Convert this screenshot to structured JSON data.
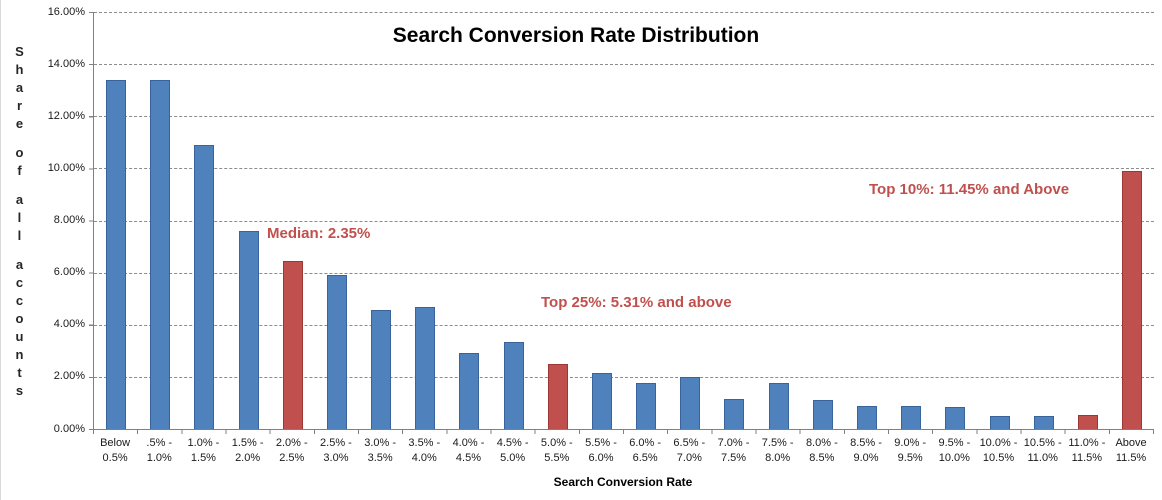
{
  "chart_data": {
    "type": "bar",
    "title": "Search Conversion Rate Distribution",
    "xlabel": "Search Conversion Rate",
    "ylabel": "Share of all accounts",
    "ylabel_words": [
      "Share",
      "of",
      "all",
      "accounts"
    ],
    "ylim": [
      0,
      16
    ],
    "ytick_step": 2,
    "ytick_labels": [
      "0.00%",
      "2.00%",
      "4.00%",
      "6.00%",
      "8.00%",
      "10.00%",
      "12.00%",
      "14.00%",
      "16.00%"
    ],
    "grid": "horizontal dashed lines every 2%",
    "legend_position": "none",
    "categories": [
      [
        "Below",
        "0.5%"
      ],
      [
        ".5% -",
        "1.0%"
      ],
      [
        "1.0% -",
        "1.5%"
      ],
      [
        "1.5% -",
        "2.0%"
      ],
      [
        "2.0% -",
        "2.5%"
      ],
      [
        "2.5% -",
        "3.0%"
      ],
      [
        "3.0% -",
        "3.5%"
      ],
      [
        "3.5% -",
        "4.0%"
      ],
      [
        "4.0% -",
        "4.5%"
      ],
      [
        "4.5% -",
        "5.0%"
      ],
      [
        "5.0% -",
        "5.5%"
      ],
      [
        "5.5% -",
        "6.0%"
      ],
      [
        "6.0% -",
        "6.5%"
      ],
      [
        "6.5% -",
        "7.0%"
      ],
      [
        "7.0% -",
        "7.5%"
      ],
      [
        "7.5% -",
        "8.0%"
      ],
      [
        "8.0% -",
        "8.5%"
      ],
      [
        "8.5% -",
        "9.0%"
      ],
      [
        "9.0% -",
        "9.5%"
      ],
      [
        "9.5% -",
        "10.0%"
      ],
      [
        "10.0% -",
        "10.5%"
      ],
      [
        "10.5% -",
        "11.0%"
      ],
      [
        "11.0% -",
        "11.5%"
      ],
      [
        "Above",
        "11.5%"
      ]
    ],
    "values": [
      13.4,
      13.4,
      10.9,
      7.6,
      6.45,
      5.9,
      4.55,
      4.7,
      2.9,
      3.35,
      2.5,
      2.15,
      1.75,
      2.0,
      1.15,
      1.75,
      1.1,
      0.9,
      0.9,
      0.85,
      0.5,
      0.5,
      0.55,
      9.9
    ],
    "highlighted_red_indices": [
      4,
      10,
      22,
      23
    ],
    "colors": {
      "bar_blue": "#4f81bd",
      "bar_blue_border": "#38649b",
      "bar_red": "#c0504d",
      "bar_red_border": "#9c3734",
      "annotation_text": "#c0504d",
      "gridline": "#8c8c8c",
      "axis": "#808080",
      "tick_text": "#1a1a1a",
      "title_text": "#000000"
    },
    "annotations": [
      {
        "name": "median",
        "text": "Median: 2.35%",
        "x": 266,
        "y": 225
      },
      {
        "name": "top25",
        "text": "Top 25%: 5.31% and above",
        "x": 540,
        "y": 294
      },
      {
        "name": "top10",
        "text": "Top 10%: 11.45% and Above",
        "x": 868,
        "y": 181
      }
    ]
  }
}
